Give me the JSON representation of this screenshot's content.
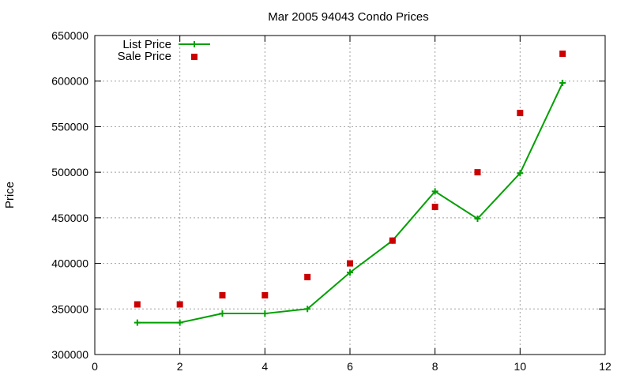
{
  "chart_data": {
    "type": "line",
    "title": "Mar 2005 94043 Condo Prices",
    "xlabel": "",
    "ylabel": "Price",
    "xlim": [
      0,
      12
    ],
    "ylim": [
      300000,
      650000
    ],
    "xticks": [
      "0",
      "2",
      "4",
      "6",
      "8",
      "10",
      "12"
    ],
    "yticks": [
      "300000",
      "350000",
      "400000",
      "450000",
      "500000",
      "550000",
      "600000",
      "650000"
    ],
    "grid": true,
    "legend_position": "top-left",
    "series": [
      {
        "name": "List Price",
        "style": "lines+points",
        "marker": "plus",
        "color": "#00a000",
        "x": [
          1,
          2,
          3,
          4,
          5,
          6,
          7,
          8,
          9,
          10,
          11
        ],
        "y": [
          335000,
          335000,
          345000,
          345000,
          350000,
          390000,
          425000,
          479000,
          449000,
          499000,
          598000
        ]
      },
      {
        "name": "Sale Price",
        "style": "points",
        "marker": "square",
        "color": "#cc0000",
        "x": [
          1,
          2,
          3,
          4,
          5,
          6,
          7,
          8,
          9,
          10,
          11
        ],
        "y": [
          355000,
          355000,
          365000,
          365000,
          385000,
          400000,
          425000,
          462000,
          500000,
          565000,
          630000
        ]
      }
    ]
  }
}
